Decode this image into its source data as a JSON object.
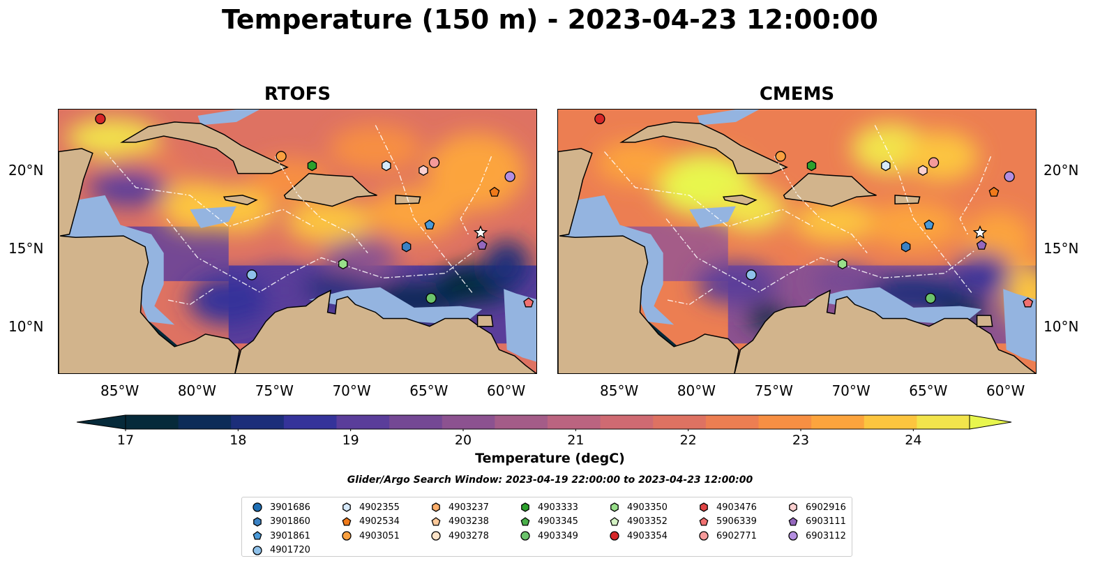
{
  "figure": {
    "title": "Temperature (150 m) - 2023-04-23 12:00:00",
    "subtitle": "Glider/Argo Search Window: 2023-04-19 22:00:00 to 2023-04-23 12:00:00"
  },
  "panels": [
    {
      "title": "RTOFS",
      "palette_variant": "warm"
    },
    {
      "title": "CMEMS",
      "palette_variant": "warmer"
    }
  ],
  "map_extent": {
    "lon_min": -89,
    "lon_max": -58,
    "lat_min": 7,
    "lat_max": 24
  },
  "axes": {
    "lon_ticks": [
      {
        "value": -85,
        "label": "85°W"
      },
      {
        "value": -80,
        "label": "80°W"
      },
      {
        "value": -75,
        "label": "75°W"
      },
      {
        "value": -70,
        "label": "70°W"
      },
      {
        "value": -65,
        "label": "65°W"
      },
      {
        "value": -60,
        "label": "60°W"
      }
    ],
    "lat_ticks": [
      {
        "value": 20,
        "label": "20°N"
      },
      {
        "value": 15,
        "label": "15°N"
      },
      {
        "value": 10,
        "label": "10°N"
      }
    ]
  },
  "colorbar": {
    "label": "Temperature (degC)",
    "min": 17,
    "max": 24.5,
    "step": 0.5,
    "ticks": [
      "17",
      "18",
      "19",
      "20",
      "21",
      "22",
      "23",
      "24"
    ],
    "colors": [
      "#062a3a",
      "#0c2c58",
      "#1c2e7a",
      "#35339a",
      "#5a3d9a",
      "#744894",
      "#8c5290",
      "#a45c88",
      "#bb6480",
      "#cf6a72",
      "#de7262",
      "#ec7e52",
      "#f78f43",
      "#fca43d",
      "#fcc53f",
      "#f2e44c"
    ],
    "under_color": "#062a3a",
    "over_color": "#e8f64e"
  },
  "colors": {
    "land": "#d2b48c",
    "shallow": "#94b4e0",
    "coast": "#000000",
    "boundary": "#ffffff"
  },
  "floats": [
    {
      "id": "3901686",
      "marker": "circle",
      "color": "#1f6fb4",
      "lon": null,
      "lat": null
    },
    {
      "id": "3901860",
      "marker": "hexagon",
      "color": "#3b82c4",
      "lon": -66.5,
      "lat": 15.2
    },
    {
      "id": "3901861",
      "marker": "pentagon",
      "color": "#4b9ad8",
      "lon": -65.0,
      "lat": 16.6
    },
    {
      "id": "4901720",
      "marker": "circle",
      "color": "#8fc1ea",
      "lon": -76.5,
      "lat": 13.4
    },
    {
      "id": "4902355",
      "marker": "hexagon",
      "color": "#d6e9fa",
      "lon": -67.8,
      "lat": 20.4
    },
    {
      "id": "4902534",
      "marker": "pentagon",
      "color": "#f07a1a",
      "lon": null,
      "lat": null
    },
    {
      "id": "4903051",
      "marker": "circle",
      "color": "#f9a040",
      "lon": -74.6,
      "lat": 21.0
    },
    {
      "id": "4903237",
      "marker": "hexagon",
      "color": "#fcae6b",
      "lon": null,
      "lat": null
    },
    {
      "id": "4903238",
      "marker": "pentagon",
      "color": "#fdc99a",
      "lon": null,
      "lat": null
    },
    {
      "id": "4903278",
      "marker": "circle",
      "color": "#fde3c8",
      "lon": null,
      "lat": null
    },
    {
      "id": "4903333",
      "marker": "hexagon",
      "color": "#2ca02c",
      "lon": -72.6,
      "lat": 20.4
    },
    {
      "id": "4903345",
      "marker": "pentagon",
      "color": "#4ab04a",
      "lon": null,
      "lat": null
    },
    {
      "id": "4903349",
      "marker": "circle",
      "color": "#6cc46c",
      "lon": -64.9,
      "lat": 11.9
    },
    {
      "id": "4903350",
      "marker": "hexagon",
      "color": "#98df8a",
      "lon": -70.6,
      "lat": 14.1
    },
    {
      "id": "4903352",
      "marker": "pentagon",
      "color": "#d4f2c4",
      "lon": null,
      "lat": null
    },
    {
      "id": "4903354",
      "marker": "circle",
      "color": "#d62728",
      "lon": -86.3,
      "lat": 23.4
    },
    {
      "id": "4903476",
      "marker": "hexagon",
      "color": "#e04545",
      "lon": null,
      "lat": null
    },
    {
      "id": "5906339",
      "marker": "pentagon",
      "color": "#f07070",
      "lon": -58.6,
      "lat": 11.6
    },
    {
      "id": "6902771",
      "marker": "circle",
      "color": "#f59a9a",
      "lon": -64.7,
      "lat": 20.6
    },
    {
      "id": "6902916",
      "marker": "hexagon",
      "color": "#fbd0d0",
      "lon": -65.4,
      "lat": 20.1
    },
    {
      "id": "6903111",
      "marker": "pentagon",
      "color": "#9467bd",
      "lon": -61.6,
      "lat": 15.3
    },
    {
      "id": "6903112",
      "marker": "circle",
      "color": "#b48ee0",
      "lon": -59.8,
      "lat": 19.7
    }
  ],
  "extra_markers": [
    {
      "id": "",
      "marker": "pentagon",
      "color": "#f07a1a",
      "lon": -60.8,
      "lat": 18.7
    },
    {
      "id": "",
      "marker": "star",
      "color": "#ffffff",
      "lon": -61.7,
      "lat": 16.1
    }
  ]
}
